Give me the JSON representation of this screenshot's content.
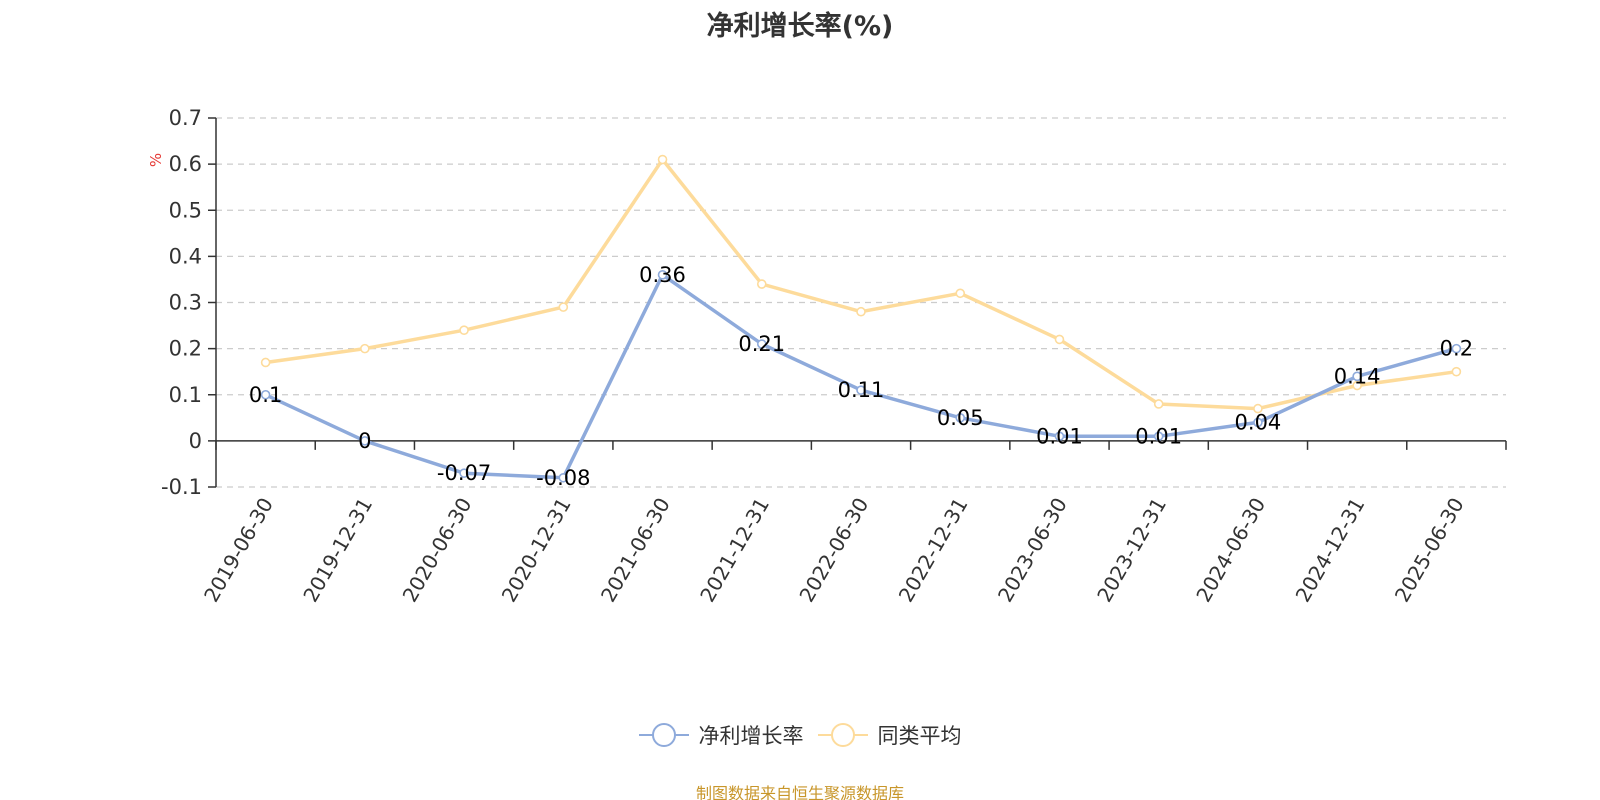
{
  "chart_data": {
    "type": "line",
    "title": "净利增长率(%)",
    "ylabel": "%",
    "ylim": [
      -0.1,
      0.7
    ],
    "y_ticks": [
      -0.1,
      0,
      0.1,
      0.2,
      0.3,
      0.4,
      0.5,
      0.6,
      0.7
    ],
    "y_tick_labels": [
      "-0.1",
      "0",
      "0.1",
      "0.2",
      "0.3",
      "0.4",
      "0.5",
      "0.6",
      "0.7"
    ],
    "grid": true,
    "legend_position": "bottom-center",
    "categories": [
      "2019-06-30",
      "2019-12-31",
      "2020-06-30",
      "2020-12-31",
      "2021-06-30",
      "2021-12-31",
      "2022-06-30",
      "2022-12-31",
      "2023-06-30",
      "2023-12-31",
      "2024-06-30",
      "2024-12-31",
      "2025-06-30"
    ],
    "series": [
      {
        "name": "净利增长率",
        "color": "#8eaadb",
        "values": [
          0.1,
          0,
          -0.07,
          -0.08,
          0.36,
          0.21,
          0.11,
          0.05,
          0.01,
          0.01,
          0.04,
          0.14,
          0.2
        ],
        "labels": [
          "0.1",
          "0",
          "-0.07",
          "-0.08",
          "0.36",
          "0.21",
          "0.11",
          "0.05",
          "0.01",
          "0.01",
          "0.04",
          "0.14",
          "0.2"
        ]
      },
      {
        "name": "同类平均",
        "color": "#fddb9b",
        "values": [
          0.17,
          0.2,
          0.24,
          0.29,
          0.61,
          0.34,
          0.28,
          0.32,
          0.22,
          0.08,
          0.07,
          0.12,
          0.15
        ]
      }
    ]
  },
  "source_note": "制图数据来自恒生聚源数据库",
  "colors": {
    "title": "#333333",
    "axis": "#333333",
    "grid": "#cccccc",
    "ylabel": "#e53935",
    "source": "#c8962a"
  }
}
